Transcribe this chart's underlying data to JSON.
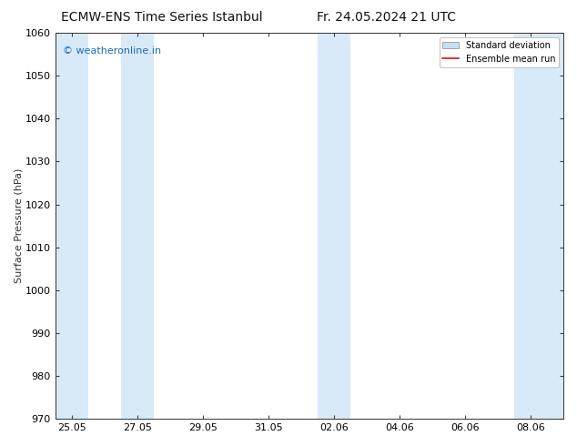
{
  "title_left": "ECMW-ENS Time Series Istanbul",
  "title_right": "Fr. 24.05.2024 21 UTC",
  "ylabel": "Surface Pressure (hPa)",
  "ylim": [
    970,
    1060
  ],
  "yticks": [
    970,
    980,
    990,
    1000,
    1010,
    1020,
    1030,
    1040,
    1050,
    1060
  ],
  "xtick_labels": [
    "25.05",
    "27.05",
    "29.05",
    "31.05",
    "02.06",
    "04.06",
    "06.06",
    "08.06"
  ],
  "xtick_positions": [
    0,
    2,
    4,
    6,
    8,
    10,
    12,
    14
  ],
  "background_color": "#ffffff",
  "plot_bg_color": "#ffffff",
  "shaded_bands": [
    {
      "x_start": -0.5,
      "x_end": 0.5
    },
    {
      "x_start": 1.5,
      "x_end": 2.5
    },
    {
      "x_start": 7.5,
      "x_end": 8.5
    },
    {
      "x_start": 13.5,
      "x_end": 15.0
    }
  ],
  "shaded_color": "#d8eaf8",
  "watermark_text": "© weatheronline.in",
  "watermark_color": "#1a6bbf",
  "legend_std_color": "#c8dff0",
  "legend_std_edge": "#999999",
  "legend_mean_color": "#dd1111",
  "title_fontsize": 10,
  "axis_label_fontsize": 8,
  "tick_fontsize": 8,
  "xmin": -0.5,
  "xmax": 15.0
}
